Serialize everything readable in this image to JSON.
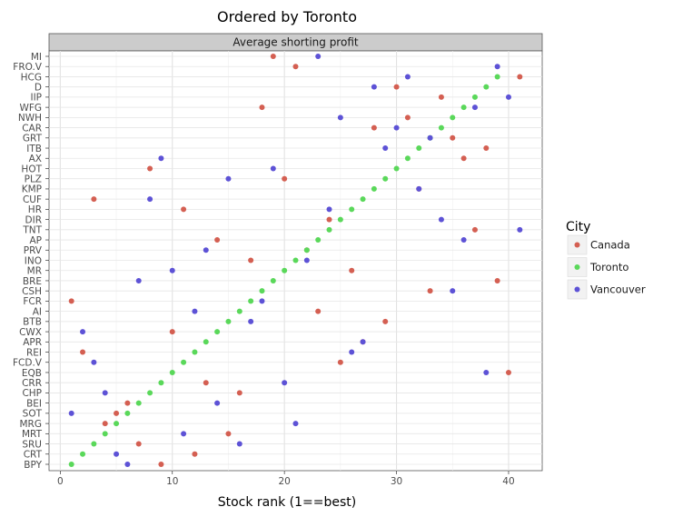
{
  "chart_data": {
    "type": "scatter",
    "title": "Ordered by Toronto",
    "facet_label": "Average shorting profit",
    "xlabel": "Stock rank (1==best)",
    "ylabel": "",
    "xlim": [
      -1,
      43
    ],
    "x_ticks": [
      0,
      10,
      20,
      30,
      40
    ],
    "grid": true,
    "legend": {
      "title": "City",
      "position": "right"
    },
    "categories": [
      "BPY",
      "CRT",
      "SRU",
      "MRT",
      "MRG",
      "SOT",
      "BEI",
      "CHP",
      "CRR",
      "EQB",
      "FCD.V",
      "REI",
      "APR",
      "CWX",
      "BTB",
      "AI",
      "FCR",
      "CSH",
      "BRE",
      "MR",
      "INO",
      "PRV",
      "AP",
      "TNT",
      "DIR",
      "HR",
      "CUF",
      "KMP",
      "PLZ",
      "HOT",
      "AX",
      "ITB",
      "GRT",
      "CAR",
      "NWH",
      "WFG",
      "IIP",
      "D",
      "HCG",
      "FRO.V",
      "MI"
    ],
    "series": [
      {
        "name": "Canada",
        "color": "#d45f52",
        "values": [
          9,
          12,
          7,
          15,
          4,
          5,
          6,
          16,
          13,
          40,
          25,
          2,
          27,
          10,
          29,
          23,
          1,
          33,
          39,
          26,
          17,
          22,
          14,
          37,
          24,
          11,
          3,
          32,
          20,
          8,
          36,
          38,
          35,
          28,
          31,
          18,
          34,
          30,
          41,
          21,
          19
        ]
      },
      {
        "name": "Toronto",
        "color": "#5ad85a",
        "values": [
          1,
          2,
          3,
          4,
          5,
          6,
          7,
          8,
          9,
          10,
          11,
          12,
          13,
          14,
          15,
          16,
          17,
          18,
          19,
          20,
          21,
          22,
          23,
          24,
          25,
          26,
          27,
          28,
          29,
          30,
          31,
          32,
          33,
          34,
          35,
          36,
          37,
          38,
          39,
          null,
          null
        ]
      },
      {
        "name": "Vancouver",
        "color": "#5d52d6",
        "values": [
          6,
          5,
          16,
          11,
          21,
          1,
          14,
          4,
          20,
          38,
          3,
          26,
          27,
          2,
          17,
          12,
          18,
          35,
          7,
          10,
          22,
          13,
          36,
          41,
          34,
          24,
          8,
          32,
          15,
          19,
          9,
          29,
          33,
          30,
          25,
          37,
          40,
          28,
          31,
          39,
          23
        ]
      }
    ]
  }
}
